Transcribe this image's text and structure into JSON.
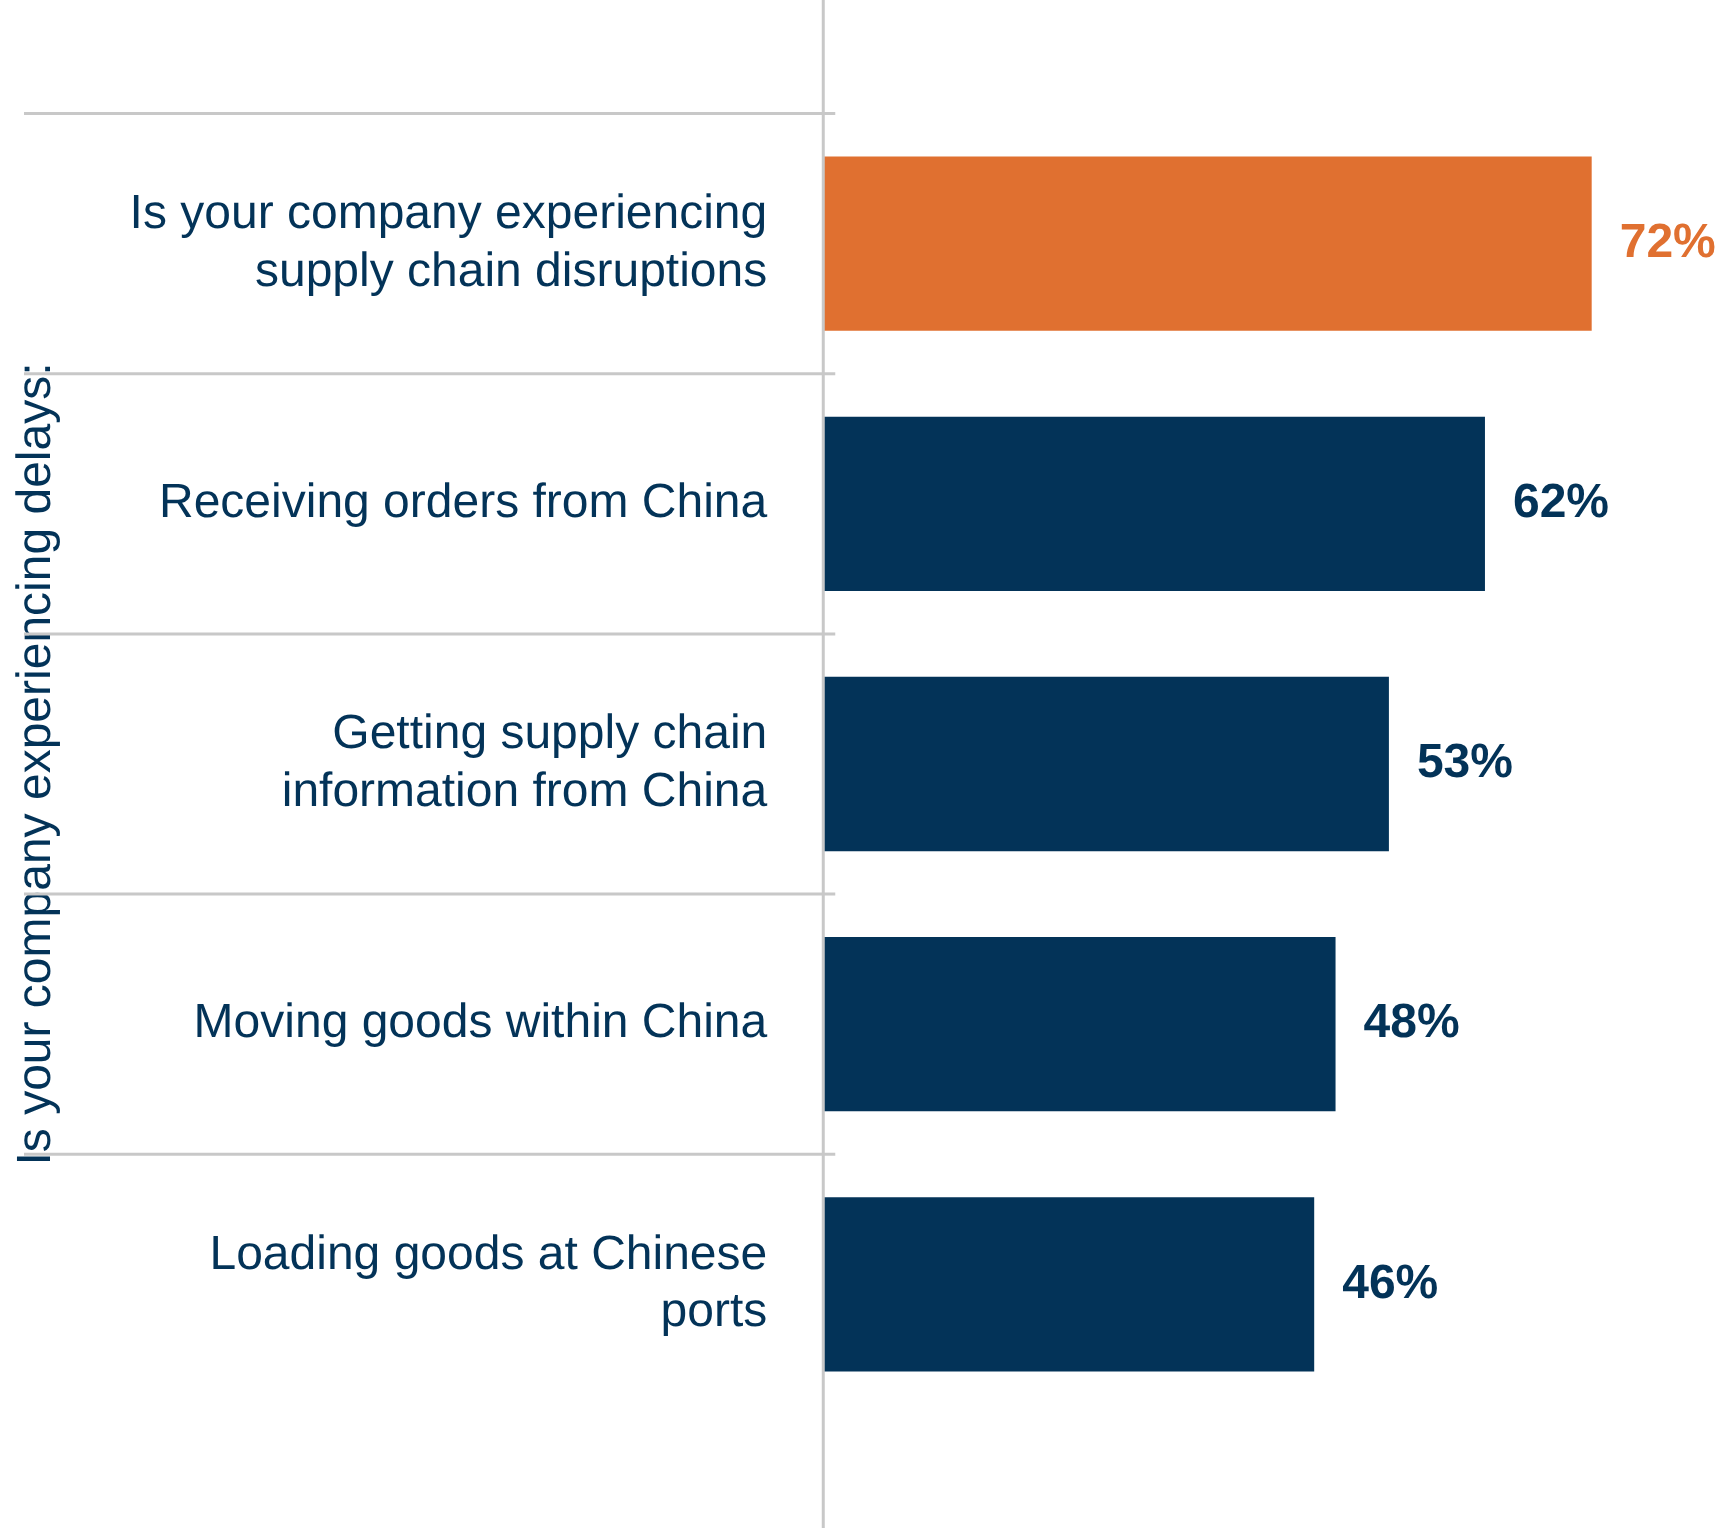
{
  "chart_data": {
    "type": "bar",
    "orientation": "horizontal",
    "ylabel": "Is your company experiencing delays:",
    "categories": [
      "Is your company experiencing supply chain disruptions",
      "Receiving orders from China",
      "Getting supply chain information from China",
      "Moving goods within China",
      "Loading goods at Chinese ports"
    ],
    "values": [
      72,
      62,
      53,
      48,
      46
    ],
    "colors": [
      "#e07030",
      "#033358",
      "#033358",
      "#033358",
      "#033358"
    ],
    "value_labels": [
      "72%",
      "62%",
      "53%",
      "48%",
      "46%"
    ],
    "grid": false,
    "legend": false
  }
}
